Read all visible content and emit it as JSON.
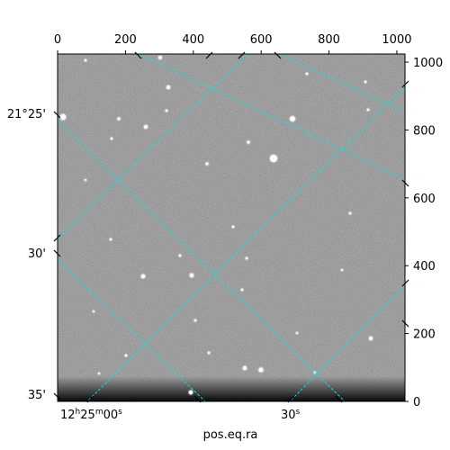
{
  "chart_data": {
    "type": "image",
    "xlabel": "pos.eq.ra",
    "pixel_axes": {
      "x_range": [
        0,
        1024
      ],
      "y_range": [
        0,
        1024
      ],
      "top_ticks": [
        0,
        200,
        400,
        600,
        800,
        1000
      ],
      "top_tick_labels": [
        "0",
        "200",
        "400",
        "600",
        "800",
        "1000"
      ],
      "right_ticks": [
        0,
        200,
        400,
        600,
        800,
        1000
      ],
      "right_tick_labels": [
        "0",
        "200",
        "400",
        "600",
        "800",
        "1000"
      ]
    },
    "world_axes": {
      "ra_tick_labels": [
        {
          "base": "12",
          "h": "h",
          "m_val": "25",
          "m": "m",
          "s_val": "00",
          "s": "s"
        },
        {
          "base": "30",
          "s": "s"
        }
      ],
      "dec_tick_labels": [
        "21°25'",
        "30'",
        "35'"
      ]
    },
    "grid": true,
    "grid_color": "#00e5e5",
    "image_colormap": "gray"
  }
}
